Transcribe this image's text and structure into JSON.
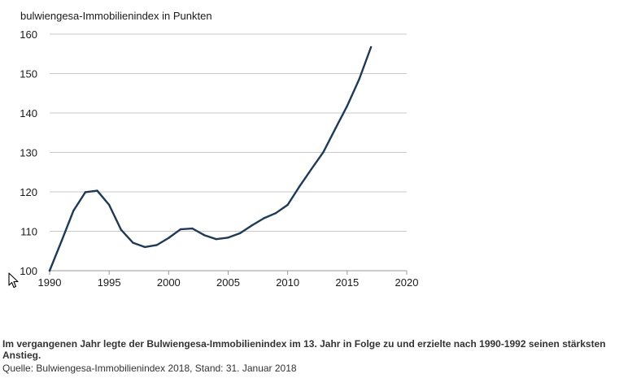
{
  "chart_data": {
    "type": "line",
    "title": "bulwiengesa-Immobilienindex in Punkten",
    "xlabel": "",
    "ylabel": "",
    "xlim": [
      1990,
      2020
    ],
    "ylim": [
      100,
      160
    ],
    "x_ticks": [
      1990,
      1995,
      2000,
      2005,
      2010,
      2015,
      2020
    ],
    "y_ticks": [
      100,
      110,
      120,
      130,
      140,
      150,
      160
    ],
    "grid": "horizontal",
    "line_color": "#1f3a57",
    "series": [
      {
        "x": [
          1990,
          1991,
          1992,
          1993,
          1994,
          1995,
          1996,
          1997,
          1998,
          1999,
          2000,
          2001,
          2002,
          2003,
          2004,
          2005,
          2006,
          2007,
          2008,
          2009,
          2010,
          2011,
          2012,
          2013,
          2014,
          2015,
          2016,
          2017
        ],
        "values": [
          100,
          107.5,
          115.2,
          119.9,
          120.3,
          116.7,
          110.4,
          107.1,
          106.0,
          106.5,
          108.3,
          110.5,
          110.7,
          109.0,
          108.0,
          108.4,
          109.5,
          111.5,
          113.3,
          114.6,
          116.7,
          121.4,
          125.8,
          130.1,
          136.0,
          141.8,
          148.5,
          156.7
        ]
      }
    ]
  },
  "caption": "Im vergangenen Jahr legte der Bulwiengesa-Immobilienindex im 13. Jahr in Folge zu und erzielte nach 1990-1992 seinen stärksten Anstieg.",
  "source": "Quelle: Bulwiengesa-Immobilienindex 2018, Stand: 31. Januar 2018"
}
